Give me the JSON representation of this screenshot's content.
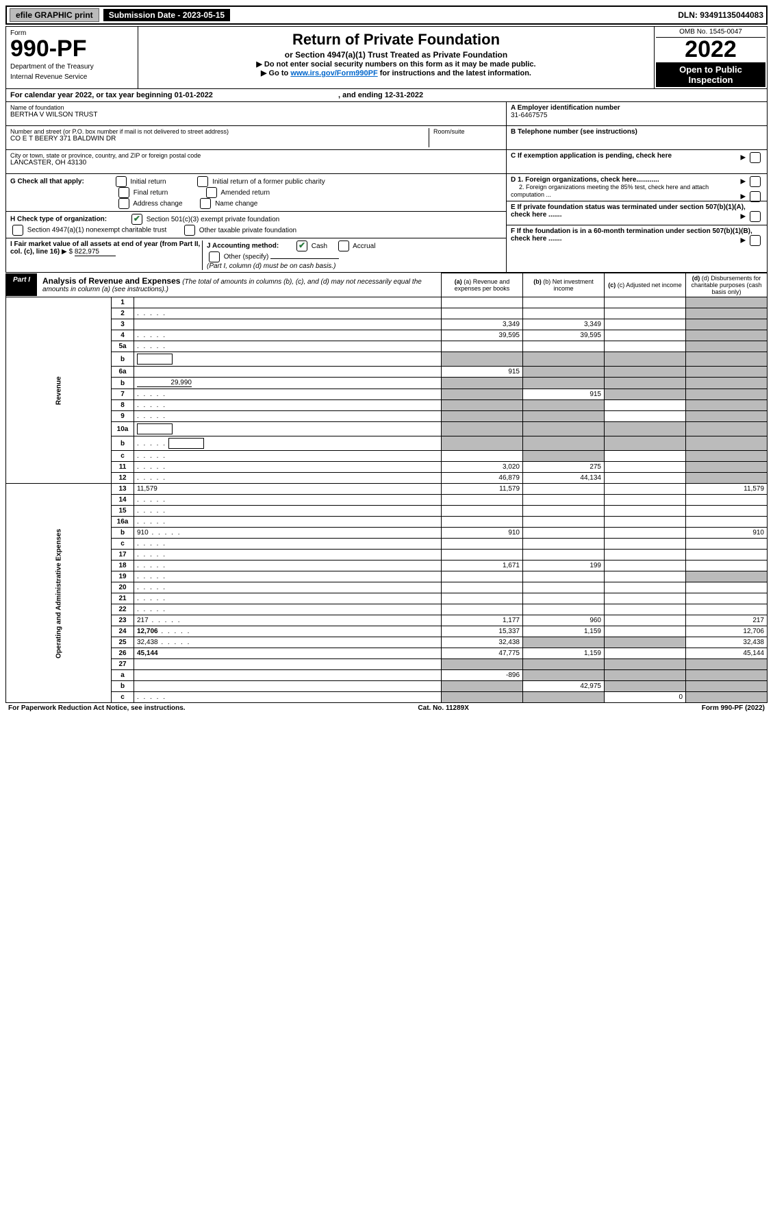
{
  "top_bar": {
    "efile_label": "efile GRAPHIC print",
    "submission_label": "Submission Date - 2023-05-15",
    "dln": "DLN: 93491135044083"
  },
  "header": {
    "form_label": "Form",
    "form_number": "990-PF",
    "dept": "Department of the Treasury",
    "irs": "Internal Revenue Service",
    "title": "Return of Private Foundation",
    "subtitle": "or Section 4947(a)(1) Trust Treated as Private Foundation",
    "note1": "▶ Do not enter social security numbers on this form as it may be made public.",
    "note2_prefix": "▶ Go to ",
    "note2_link": "www.irs.gov/Form990PF",
    "note2_suffix": " for instructions and the latest information.",
    "omb": "OMB No. 1545-0047",
    "year": "2022",
    "inspect": "Open to Public Inspection"
  },
  "cal_year": {
    "prefix": "For calendar year 2022, or tax year beginning ",
    "begin": "01-01-2022",
    "mid": " , and ending ",
    "end": "12-31-2022"
  },
  "info": {
    "name_label": "Name of foundation",
    "name": "BERTHA V WILSON TRUST",
    "addr_label": "Number and street (or P.O. box number if mail is not delivered to street address)",
    "addr": "CO E T BEERY 371 BALDWIN DR",
    "room_label": "Room/suite",
    "city_label": "City or town, state or province, country, and ZIP or foreign postal code",
    "city": "LANCASTER, OH  43130",
    "ein_label": "A Employer identification number",
    "ein": "31-6467575",
    "phone_label": "B Telephone number (see instructions)",
    "c_label": "C If exemption application is pending, check here",
    "d1_label": "D 1. Foreign organizations, check here............",
    "d2_label": "2. Foreign organizations meeting the 85% test, check here and attach computation ...",
    "e_label": "E  If private foundation status was terminated under section 507(b)(1)(A), check here .......",
    "f_label": "F  If the foundation is in a 60-month termination under section 507(b)(1)(B), check here .......",
    "g_label": "G Check all that apply:",
    "g_initial": "Initial return",
    "g_initial_former": "Initial return of a former public charity",
    "g_final": "Final return",
    "g_amended": "Amended return",
    "g_address": "Address change",
    "g_name": "Name change",
    "h_label": "H Check type of organization:",
    "h_501c3": "Section 501(c)(3) exempt private foundation",
    "h_4947": "Section 4947(a)(1) nonexempt charitable trust",
    "h_other": "Other taxable private foundation",
    "i_label": "I Fair market value of all assets at end of year (from Part II, col. (c), line 16)",
    "i_value": "822,975",
    "j_label": "J Accounting method:",
    "j_cash": "Cash",
    "j_accrual": "Accrual",
    "j_other": "Other (specify)",
    "j_note": "(Part I, column (d) must be on cash basis.)"
  },
  "part1": {
    "tab": "Part I",
    "title": "Analysis of Revenue and Expenses",
    "title_note": " (The total of amounts in columns (b), (c), and (d) may not necessarily equal the amounts in column (a) (see instructions).)",
    "col_a": "(a) Revenue and expenses per books",
    "col_b": "(b) Net investment income",
    "col_c": "(c) Adjusted net income",
    "col_d": "(d) Disbursements for charitable purposes (cash basis only)"
  },
  "sections": {
    "revenue": "Revenue",
    "expenses": "Operating and Administrative Expenses"
  },
  "rows": [
    {
      "n": "1",
      "d": "",
      "a": "",
      "b": "",
      "c": "",
      "grey_c": false,
      "grey_d": true
    },
    {
      "n": "2",
      "d": "",
      "dots": true,
      "a": "",
      "b": "",
      "c": "",
      "grey_c": false,
      "grey_d": true
    },
    {
      "n": "3",
      "d": "",
      "a": "3,349",
      "b": "3,349",
      "c": "",
      "grey_d": true
    },
    {
      "n": "4",
      "d": "",
      "dots": true,
      "a": "39,595",
      "b": "39,595",
      "c": "",
      "grey_d": true
    },
    {
      "n": "5a",
      "d": "",
      "dots": true,
      "a": "",
      "b": "",
      "c": "",
      "grey_d": true
    },
    {
      "n": "b",
      "d": "",
      "box": true,
      "a": "",
      "b": "",
      "c": "",
      "grey_a": true,
      "grey_b": true,
      "grey_c": true,
      "grey_d": true
    },
    {
      "n": "6a",
      "d": "",
      "a": "915",
      "b": "",
      "c": "",
      "grey_b": true,
      "grey_c": true,
      "grey_d": true
    },
    {
      "n": "b",
      "d": "",
      "inline_val": "29,990",
      "a": "",
      "b": "",
      "c": "",
      "grey_a": true,
      "grey_b": true,
      "grey_c": true,
      "grey_d": true
    },
    {
      "n": "7",
      "d": "",
      "dots": true,
      "a": "",
      "b": "915",
      "c": "",
      "grey_a": true,
      "grey_c": true,
      "grey_d": true
    },
    {
      "n": "8",
      "d": "",
      "dots": true,
      "a": "",
      "b": "",
      "c": "",
      "grey_a": true,
      "grey_b": true,
      "grey_d": true
    },
    {
      "n": "9",
      "d": "",
      "dots": true,
      "a": "",
      "b": "",
      "c": "",
      "grey_a": true,
      "grey_b": true,
      "grey_d": true
    },
    {
      "n": "10a",
      "d": "",
      "box": true,
      "a": "",
      "b": "",
      "c": "",
      "grey_a": true,
      "grey_b": true,
      "grey_c": true,
      "grey_d": true
    },
    {
      "n": "b",
      "d": "",
      "dots": true,
      "box": true,
      "a": "",
      "b": "",
      "c": "",
      "grey_a": true,
      "grey_b": true,
      "grey_c": true,
      "grey_d": true
    },
    {
      "n": "c",
      "d": "",
      "dots": true,
      "a": "",
      "b": "",
      "c": "",
      "grey_b": true,
      "grey_d": true
    },
    {
      "n": "11",
      "d": "",
      "dots": true,
      "a": "3,020",
      "b": "275",
      "c": "",
      "grey_d": true
    },
    {
      "n": "12",
      "d": "",
      "bold": true,
      "dots": true,
      "a": "46,879",
      "b": "44,134",
      "c": "",
      "grey_d": true
    }
  ],
  "exp_rows": [
    {
      "n": "13",
      "d": "11,579",
      "a": "11,579",
      "b": "",
      "c": ""
    },
    {
      "n": "14",
      "d": "",
      "dots": true,
      "a": "",
      "b": "",
      "c": ""
    },
    {
      "n": "15",
      "d": "",
      "dots": true,
      "a": "",
      "b": "",
      "c": ""
    },
    {
      "n": "16a",
      "d": "",
      "dots": true,
      "a": "",
      "b": "",
      "c": ""
    },
    {
      "n": "b",
      "d": "910",
      "dots": true,
      "a": "910",
      "b": "",
      "c": ""
    },
    {
      "n": "c",
      "d": "",
      "dots": true,
      "a": "",
      "b": "",
      "c": ""
    },
    {
      "n": "17",
      "d": "",
      "dots": true,
      "a": "",
      "b": "",
      "c": ""
    },
    {
      "n": "18",
      "d": "",
      "dots": true,
      "a": "1,671",
      "b": "199",
      "c": ""
    },
    {
      "n": "19",
      "d": "",
      "dots": true,
      "a": "",
      "b": "",
      "c": "",
      "grey_d": true
    },
    {
      "n": "20",
      "d": "",
      "dots": true,
      "a": "",
      "b": "",
      "c": ""
    },
    {
      "n": "21",
      "d": "",
      "dots": true,
      "a": "",
      "b": "",
      "c": ""
    },
    {
      "n": "22",
      "d": "",
      "dots": true,
      "a": "",
      "b": "",
      "c": ""
    },
    {
      "n": "23",
      "d": "217",
      "dots": true,
      "a": "1,177",
      "b": "960",
      "c": ""
    },
    {
      "n": "24",
      "d": "12,706",
      "bold": true,
      "dots": true,
      "a": "15,337",
      "b": "1,159",
      "c": ""
    },
    {
      "n": "25",
      "d": "32,438",
      "dots": true,
      "a": "32,438",
      "b": "",
      "c": "",
      "grey_b": true,
      "grey_c": true
    },
    {
      "n": "26",
      "d": "45,144",
      "bold": true,
      "a": "47,775",
      "b": "1,159",
      "c": ""
    },
    {
      "n": "27",
      "d": "",
      "a": "",
      "b": "",
      "c": "",
      "grey_a": true,
      "grey_b": true,
      "grey_c": true,
      "grey_d": true
    },
    {
      "n": "a",
      "d": "",
      "bold": true,
      "a": "-896",
      "b": "",
      "c": "",
      "grey_b": true,
      "grey_c": true,
      "grey_d": true
    },
    {
      "n": "b",
      "d": "",
      "bold": true,
      "a": "",
      "b": "42,975",
      "c": "",
      "grey_a": true,
      "grey_c": true,
      "grey_d": true
    },
    {
      "n": "c",
      "d": "",
      "bold": true,
      "dots": true,
      "a": "",
      "b": "",
      "c": "0",
      "grey_a": true,
      "grey_b": true,
      "grey_d": true
    }
  ],
  "footer": {
    "left": "For Paperwork Reduction Act Notice, see instructions.",
    "mid": "Cat. No. 11289X",
    "right": "Form 990-PF (2022)"
  },
  "colors": {
    "grey": "#bbbbbb",
    "black": "#000000",
    "link": "#0066cc",
    "check": "#2a7a3e"
  }
}
